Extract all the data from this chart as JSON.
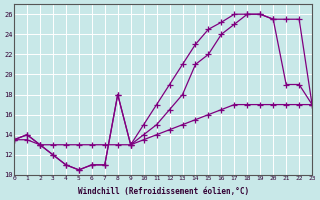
{
  "xlabel": "Windchill (Refroidissement éolien,°C)",
  "bg_color": "#c8e8e8",
  "line_color": "#800080",
  "grid_color": "#ffffff",
  "xlim": [
    0,
    23
  ],
  "ylim": [
    10,
    27
  ],
  "xticks": [
    0,
    1,
    2,
    3,
    4,
    5,
    6,
    7,
    8,
    9,
    10,
    11,
    12,
    13,
    14,
    15,
    16,
    17,
    18,
    19,
    20,
    21,
    22,
    23
  ],
  "yticks": [
    10,
    12,
    14,
    16,
    18,
    20,
    22,
    24,
    26
  ],
  "line1_x": [
    0,
    1,
    2,
    3,
    4,
    5,
    6,
    7,
    8,
    9,
    10,
    11,
    12,
    13,
    14,
    15,
    16,
    17,
    18,
    19,
    20,
    21,
    22,
    23
  ],
  "line1_y": [
    13.5,
    14,
    13,
    12,
    11,
    10.5,
    11,
    11,
    18,
    13,
    14,
    15,
    16.5,
    18,
    21,
    22,
    24,
    25,
    26,
    26,
    25.5,
    19,
    19,
    17
  ],
  "line2_x": [
    0,
    1,
    2,
    3,
    4,
    5,
    6,
    7,
    8,
    9,
    10,
    11,
    12,
    13,
    14,
    15,
    16,
    17,
    18,
    19,
    20,
    21,
    22,
    23
  ],
  "line2_y": [
    13.5,
    14,
    13,
    12,
    11,
    10.5,
    11,
    11,
    18,
    13,
    15,
    17,
    19,
    21,
    23,
    24.5,
    25.2,
    26,
    26,
    26,
    25.5,
    25.5,
    25.5,
    17
  ],
  "line3_x": [
    0,
    1,
    2,
    3,
    4,
    5,
    6,
    7,
    8,
    9,
    10,
    11,
    12,
    13,
    14,
    15,
    16,
    17,
    18,
    19,
    20,
    21,
    22,
    23
  ],
  "line3_y": [
    13.5,
    13.5,
    13,
    13,
    13,
    13,
    13,
    13,
    13,
    13,
    13.5,
    14,
    14.5,
    15,
    15.5,
    16,
    16.5,
    17,
    17,
    17,
    17,
    17,
    17,
    17
  ]
}
